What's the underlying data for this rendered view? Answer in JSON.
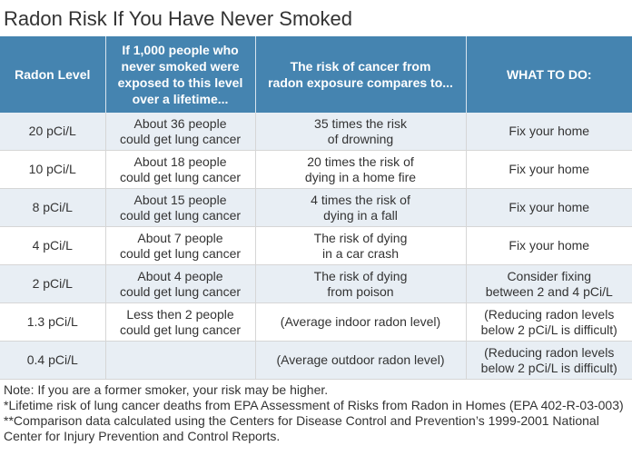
{
  "title": "Radon Risk If You Have Never Smoked",
  "table": {
    "headers": [
      [
        "Radon Level"
      ],
      [
        "If 1,000 people who",
        "never smoked were",
        "exposed to this level",
        "over a lifetime..."
      ],
      [
        "The risk of cancer from",
        "radon exposure compares to..."
      ],
      [
        "WHAT TO DO:"
      ]
    ],
    "rows": [
      {
        "level": "20 pCi/L",
        "people": [
          "About 36 people",
          "could get lung cancer"
        ],
        "compare": [
          "35 times the risk",
          "of drowning"
        ],
        "action": [
          "Fix your home"
        ]
      },
      {
        "level": "10 pCi/L",
        "people": [
          "About 18 people",
          "could get lung cancer"
        ],
        "compare": [
          "20 times the risk of",
          "dying in a home fire"
        ],
        "action": [
          "Fix your home"
        ]
      },
      {
        "level": "8 pCi/L",
        "people": [
          "About 15 people",
          "could get lung cancer"
        ],
        "compare": [
          "4 times the risk of",
          "dying in a fall"
        ],
        "action": [
          "Fix your home"
        ]
      },
      {
        "level": "4 pCi/L",
        "people": [
          "About 7 people",
          "could get lung cancer"
        ],
        "compare": [
          "The risk of dying",
          "in a car crash"
        ],
        "action": [
          "Fix your home"
        ]
      },
      {
        "level": "2 pCi/L",
        "people": [
          "About 4 people",
          "could get lung cancer"
        ],
        "compare": [
          "The risk of dying",
          "from poison"
        ],
        "action": [
          "Consider fixing",
          "between 2 and 4 pCi/L"
        ]
      },
      {
        "level": "1.3 pCi/L",
        "people": [
          "Less then 2 people",
          "could get lung cancer"
        ],
        "compare": [
          "(Average indoor radon level)"
        ],
        "action": [
          "(Reducing radon levels",
          "below 2 pCi/L is difficult)"
        ]
      },
      {
        "level": "0.4 pCi/L",
        "people": [],
        "compare": [
          "(Average outdoor radon level)"
        ],
        "action": [
          "(Reducing radon levels",
          "below 2 pCi/L is difficult)"
        ]
      }
    ]
  },
  "notes": [
    "Note: If you are a former smoker, your risk may be higher.",
    "*Lifetime risk of lung cancer deaths from EPA Assessment of Risks from Radon in Homes (EPA 402-R-03-003)",
    "**Comparison data calculated using the Centers for Disease Control and Prevention’s 1999-2001 National",
    "Center for Injury Prevention and Control Reports."
  ],
  "colors": {
    "header_bg": "#4584b0",
    "row_alt_bg": "#e8eef4",
    "text": "#333333"
  }
}
